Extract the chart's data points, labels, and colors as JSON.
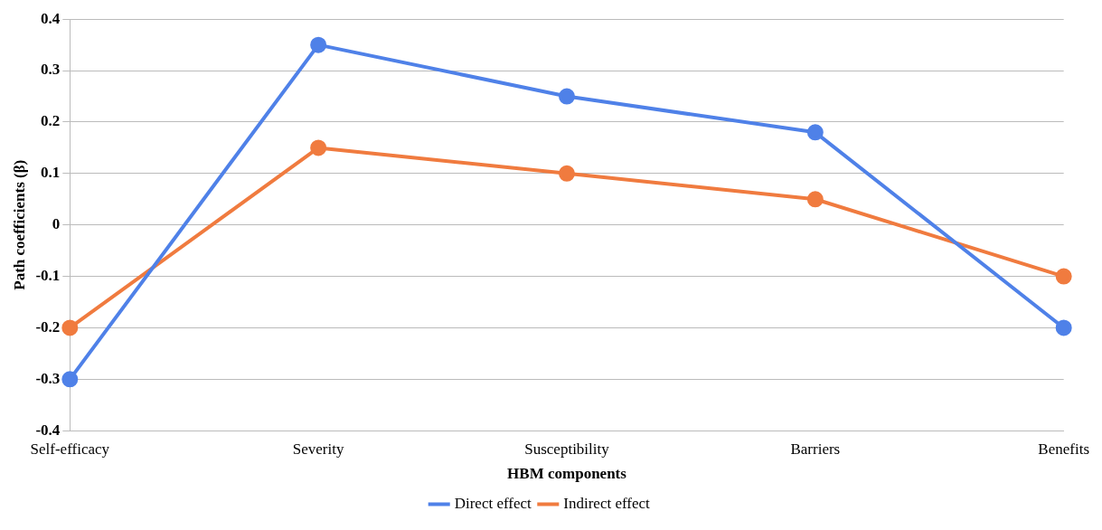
{
  "chart_data": {
    "type": "line",
    "xlabel": "HBM components",
    "ylabel": "Path coefficients (β)",
    "categories": [
      "Self-efficacy",
      "Severity",
      "Susceptibility",
      "Barriers",
      "Benefits"
    ],
    "series": [
      {
        "name": "Direct effect",
        "color": "#4f81e8",
        "values": [
          -0.3,
          0.35,
          0.25,
          0.18,
          -0.2
        ]
      },
      {
        "name": "Indirect effect",
        "color": "#f07b3f",
        "values": [
          -0.2,
          0.15,
          0.1,
          0.05,
          -0.1
        ]
      }
    ],
    "ylim": [
      -0.4,
      0.4
    ],
    "yticks": [
      -0.4,
      -0.3,
      -0.2,
      -0.1,
      0,
      0.1,
      0.2,
      0.3,
      0.4
    ],
    "grid": "y",
    "legend": "bottom",
    "marker": "circle",
    "line_style": "solid"
  }
}
